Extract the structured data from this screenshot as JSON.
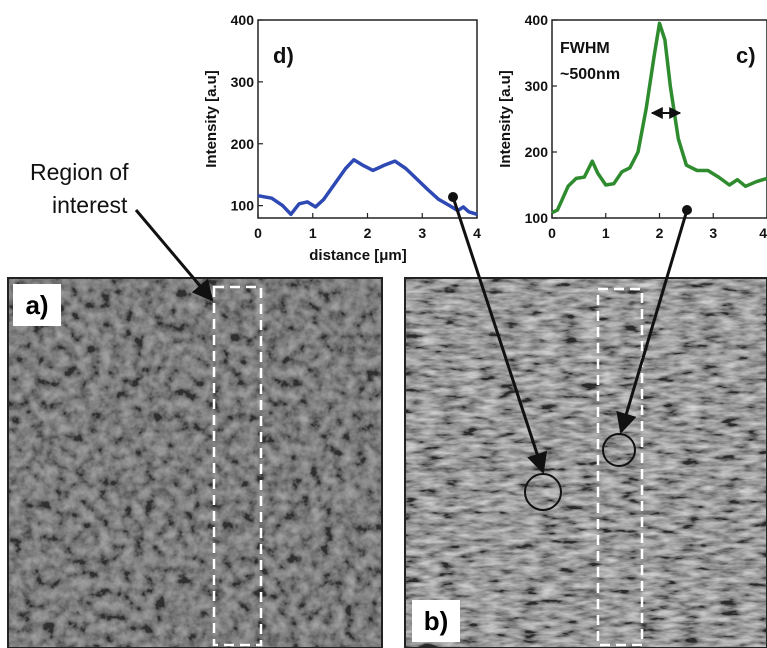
{
  "annotation": {
    "line1": "Region of",
    "line2": "interest"
  },
  "panels": {
    "a": {
      "label": "a)"
    },
    "b": {
      "label": "b)"
    }
  },
  "chart_data": [
    {
      "type": "line",
      "panel_label": "d)",
      "xlabel": "distance [μm]",
      "ylabel": "Intensity [a.u]",
      "xlim": [
        0,
        4
      ],
      "ylim": [
        80,
        400
      ],
      "xticks": [
        "0",
        "1",
        "2",
        "3",
        "4"
      ],
      "yticks": [
        "100",
        "200",
        "300",
        "400"
      ],
      "grid": false,
      "color": "#2f49b4",
      "series": [
        {
          "x": [
            0,
            0.25,
            0.45,
            0.6,
            0.75,
            0.9,
            1.05,
            1.2,
            1.4,
            1.6,
            1.75,
            1.9,
            2.1,
            2.3,
            2.5,
            2.7,
            2.9,
            3.1,
            3.3,
            3.5,
            3.65,
            3.75,
            3.85,
            4.0
          ],
          "y": [
            116,
            112,
            100,
            86,
            103,
            106,
            98,
            110,
            135,
            160,
            174,
            166,
            157,
            165,
            172,
            160,
            143,
            126,
            110,
            100,
            92,
            98,
            90,
            86
          ]
        }
      ]
    },
    {
      "type": "line",
      "panel_label": "c)",
      "annotation": [
        "FWHM",
        "~500nm"
      ],
      "ylabel": "Intensity [a.u]",
      "xlim": [
        0,
        4
      ],
      "ylim": [
        100,
        400
      ],
      "xticks": [
        "0",
        "1",
        "2",
        "3",
        "4"
      ],
      "yticks": [
        "100",
        "200",
        "300",
        "400"
      ],
      "grid": false,
      "color": "#2e8b2e",
      "series": [
        {
          "x": [
            0,
            0.1,
            0.2,
            0.3,
            0.45,
            0.6,
            0.75,
            0.85,
            1.0,
            1.15,
            1.3,
            1.45,
            1.6,
            1.75,
            1.9,
            2.0,
            2.1,
            2.2,
            2.35,
            2.5,
            2.7,
            2.9,
            3.1,
            3.3,
            3.45,
            3.6,
            3.8,
            4.0
          ],
          "y": [
            108,
            112,
            130,
            148,
            160,
            162,
            186,
            168,
            150,
            152,
            170,
            176,
            200,
            265,
            345,
            395,
            370,
            300,
            220,
            180,
            172,
            172,
            162,
            150,
            158,
            148,
            155,
            160
          ]
        }
      ]
    }
  ]
}
